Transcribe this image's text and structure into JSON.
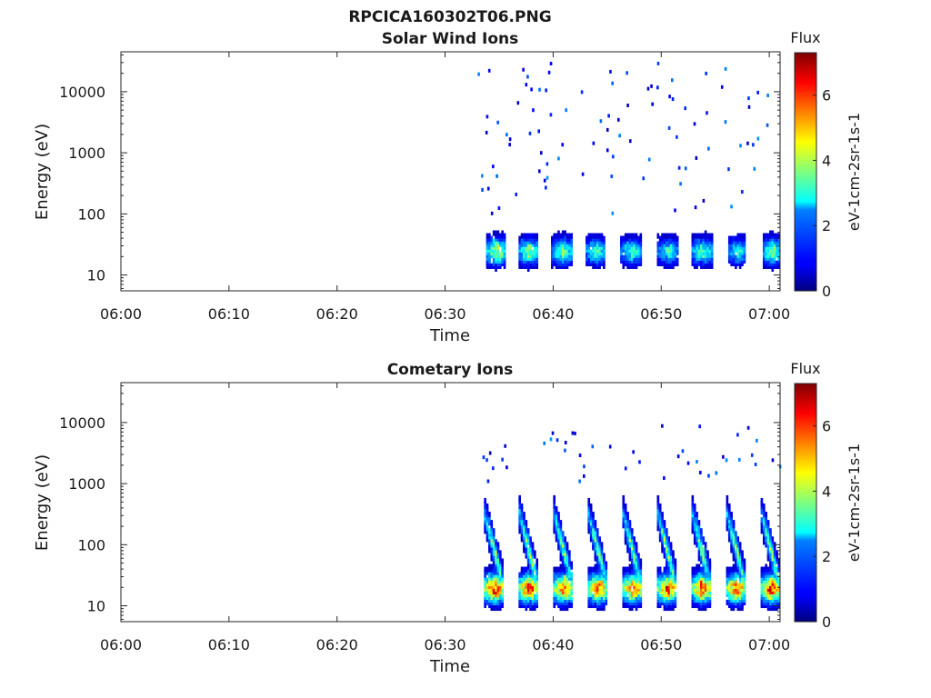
{
  "figure": {
    "filename": "RPCICA160302T06.PNG"
  },
  "chart_data": [
    {
      "type": "heatmap",
      "title": "Solar Wind Ions",
      "xlabel": "Time",
      "ylabel": "Energy (eV)",
      "x_ticks": [
        "06:00",
        "06:10",
        "06:20",
        "06:30",
        "06:40",
        "06:50",
        "07:00"
      ],
      "x_tick_minutes": [
        0,
        10,
        20,
        30,
        40,
        50,
        60
      ],
      "xlim_minutes": [
        0,
        61
      ],
      "y_ticks": [
        "10",
        "100",
        "1000",
        "10000"
      ],
      "y_tick_values": [
        10,
        100,
        1000,
        10000
      ],
      "y_scale": "log",
      "ylim": [
        5.5,
        45000
      ],
      "colorbar": {
        "label": "Flux",
        "units": "eV-1cm-2sr-1s-1",
        "ticks": [
          "0",
          "2",
          "4",
          "6"
        ],
        "tick_values": [
          0,
          2,
          4,
          6
        ],
        "range": [
          0,
          7.3
        ],
        "colormap": "jet"
      },
      "data_start_minute": 33,
      "bursts": [
        {
          "start": 33.8,
          "end": 35.6,
          "peak_energy": 25,
          "peak_flux": 4.5
        },
        {
          "start": 36.8,
          "end": 38.6,
          "peak_energy": 25,
          "peak_flux": 3.8
        },
        {
          "start": 39.8,
          "end": 41.8,
          "peak_energy": 25,
          "peak_flux": 3.6
        },
        {
          "start": 43.0,
          "end": 44.8,
          "peak_energy": 25,
          "peak_flux": 3.4
        },
        {
          "start": 46.2,
          "end": 48.2,
          "peak_energy": 25,
          "peak_flux": 3.2
        },
        {
          "start": 49.6,
          "end": 51.6,
          "peak_energy": 25,
          "peak_flux": 3.0
        },
        {
          "start": 52.8,
          "end": 54.8,
          "peak_energy": 25,
          "peak_flux": 3.4
        },
        {
          "start": 56.2,
          "end": 57.8,
          "peak_energy": 25,
          "peak_flux": 3.0
        },
        {
          "start": 59.4,
          "end": 61.0,
          "peak_energy": 25,
          "peak_flux": 4.0
        }
      ],
      "scatter_energy_range": [
        100,
        30000
      ]
    },
    {
      "type": "heatmap",
      "title": "Cometary Ions",
      "xlabel": "Time",
      "ylabel": "Energy (eV)",
      "x_ticks": [
        "06:00",
        "06:10",
        "06:20",
        "06:30",
        "06:40",
        "06:50",
        "07:00"
      ],
      "x_tick_minutes": [
        0,
        10,
        20,
        30,
        40,
        50,
        60
      ],
      "xlim_minutes": [
        0,
        61
      ],
      "y_ticks": [
        "10",
        "100",
        "1000",
        "10000"
      ],
      "y_tick_values": [
        10,
        100,
        1000,
        10000
      ],
      "y_scale": "log",
      "ylim": [
        5.5,
        45000
      ],
      "colorbar": {
        "label": "Flux",
        "units": "eV-1cm-2sr-1s-1",
        "ticks": [
          "0",
          "2",
          "4",
          "6"
        ],
        "tick_values": [
          0,
          2,
          4,
          6
        ],
        "range": [
          0,
          7.3
        ],
        "colormap": "jet"
      },
      "data_start_minute": 32.8,
      "bursts": [
        {
          "start": 33.6,
          "end": 35.4,
          "peak_energy": 20,
          "peak_flux": 6.3
        },
        {
          "start": 36.8,
          "end": 38.6,
          "peak_energy": 20,
          "peak_flux": 6.2
        },
        {
          "start": 40.0,
          "end": 41.8,
          "peak_energy": 20,
          "peak_flux": 6.1
        },
        {
          "start": 43.2,
          "end": 45.0,
          "peak_energy": 20,
          "peak_flux": 6.0
        },
        {
          "start": 46.4,
          "end": 48.2,
          "peak_energy": 20,
          "peak_flux": 6.0
        },
        {
          "start": 49.6,
          "end": 51.4,
          "peak_energy": 20,
          "peak_flux": 6.1
        },
        {
          "start": 52.8,
          "end": 54.6,
          "peak_energy": 20,
          "peak_flux": 6.0
        },
        {
          "start": 56.0,
          "end": 57.8,
          "peak_energy": 20,
          "peak_flux": 6.0
        },
        {
          "start": 59.2,
          "end": 61.0,
          "peak_energy": 20,
          "peak_flux": 6.4
        }
      ],
      "scatter_energy_range": [
        1000,
        10000
      ]
    }
  ]
}
